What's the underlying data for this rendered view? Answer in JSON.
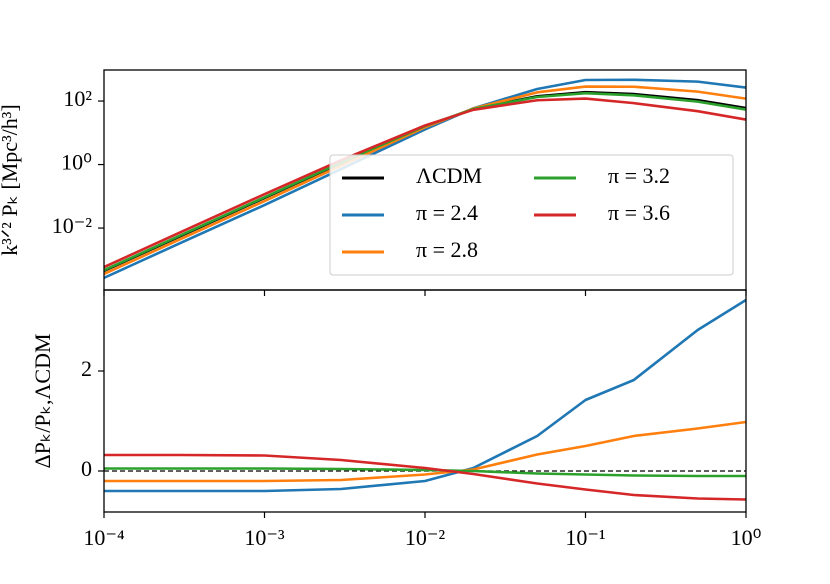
{
  "chart_data": [
    {
      "type": "line",
      "xscale": "log",
      "yscale": "log",
      "ylabel": "k³ᐟ² Pₖ [Mpc³/h³]",
      "x": [
        0.0001,
        0.0003,
        0.001,
        0.003,
        0.01,
        0.02,
        0.05,
        0.1,
        0.2,
        0.5,
        1
      ],
      "xlim": [
        0.0001,
        1
      ],
      "xticks": [
        0.0001,
        0.001,
        0.01,
        0.1,
        1
      ],
      "ylim": [
        0.000112,
        950
      ],
      "yticks": [
        {
          "value": 0.01,
          "label": "10⁻²"
        },
        {
          "value": 1,
          "label": "10⁰"
        },
        {
          "value": 100,
          "label": "10²"
        }
      ],
      "legend_loc": "lower right",
      "legend_ncol": 2,
      "series": [
        {
          "name": "ΛCDM",
          "color": "#000000",
          "values": [
            0.00045,
            0.0056,
            0.089,
            1.12,
            16,
            56,
            141,
            190,
            166,
            107,
            60
          ]
        },
        {
          "name": "π = 2.4",
          "color": "#1f77b4",
          "values": [
            0.00027,
            0.0034,
            0.053,
            0.72,
            12.8,
            59,
            240,
            460,
            468,
            409,
            265
          ]
        },
        {
          "name": "π = 2.8",
          "color": "#ff7f0e",
          "values": [
            0.00036,
            0.0045,
            0.071,
            0.92,
            14.9,
            58,
            188,
            285,
            282,
            198,
            119
          ]
        },
        {
          "name": "π = 3.2",
          "color": "#2ca02c",
          "values": [
            0.00047,
            0.0059,
            0.093,
            1.16,
            16.3,
            56,
            134,
            177,
            151,
            96,
            54
          ]
        },
        {
          "name": "π = 3.6",
          "color": "#d62728",
          "values": [
            0.00059,
            0.0074,
            0.117,
            1.37,
            17,
            53,
            106,
            120,
            86,
            48,
            26
          ]
        }
      ]
    },
    {
      "type": "line",
      "xscale": "log",
      "ylabel": "ΔPₖ/Pₖ,ΛCDM",
      "x": [
        0.0001,
        0.0003,
        0.001,
        0.003,
        0.01,
        0.02,
        0.05,
        0.1,
        0.2,
        0.5,
        1
      ],
      "xlim": [
        0.0001,
        1
      ],
      "xticks": [
        {
          "value": 0.0001,
          "label": "10⁻⁴"
        },
        {
          "value": 0.001,
          "label": "10⁻³"
        },
        {
          "value": 0.01,
          "label": "10⁻²"
        },
        {
          "value": 0.1,
          "label": "10⁻¹"
        },
        {
          "value": 1,
          "label": "10⁰"
        }
      ],
      "ylim": [
        -0.82,
        3.62
      ],
      "yticks": [
        0,
        2
      ],
      "hline": {
        "value": 0,
        "color": "#000000",
        "dashed": true
      },
      "series": [
        {
          "color": "#1f77b4",
          "values": [
            -0.4,
            -0.4,
            -0.4,
            -0.36,
            -0.2,
            0.06,
            0.7,
            1.42,
            1.82,
            2.82,
            3.42
          ]
        },
        {
          "color": "#ff7f0e",
          "values": [
            -0.2,
            -0.2,
            -0.2,
            -0.18,
            -0.07,
            0.03,
            0.33,
            0.5,
            0.7,
            0.85,
            0.98
          ]
        },
        {
          "color": "#2ca02c",
          "values": [
            0.05,
            0.05,
            0.05,
            0.04,
            0.02,
            0,
            -0.05,
            -0.07,
            -0.09,
            -0.1,
            -0.1
          ]
        },
        {
          "color": "#d62728",
          "values": [
            0.32,
            0.32,
            0.31,
            0.22,
            0.06,
            -0.06,
            -0.25,
            -0.37,
            -0.48,
            -0.55,
            -0.57
          ]
        }
      ]
    }
  ]
}
